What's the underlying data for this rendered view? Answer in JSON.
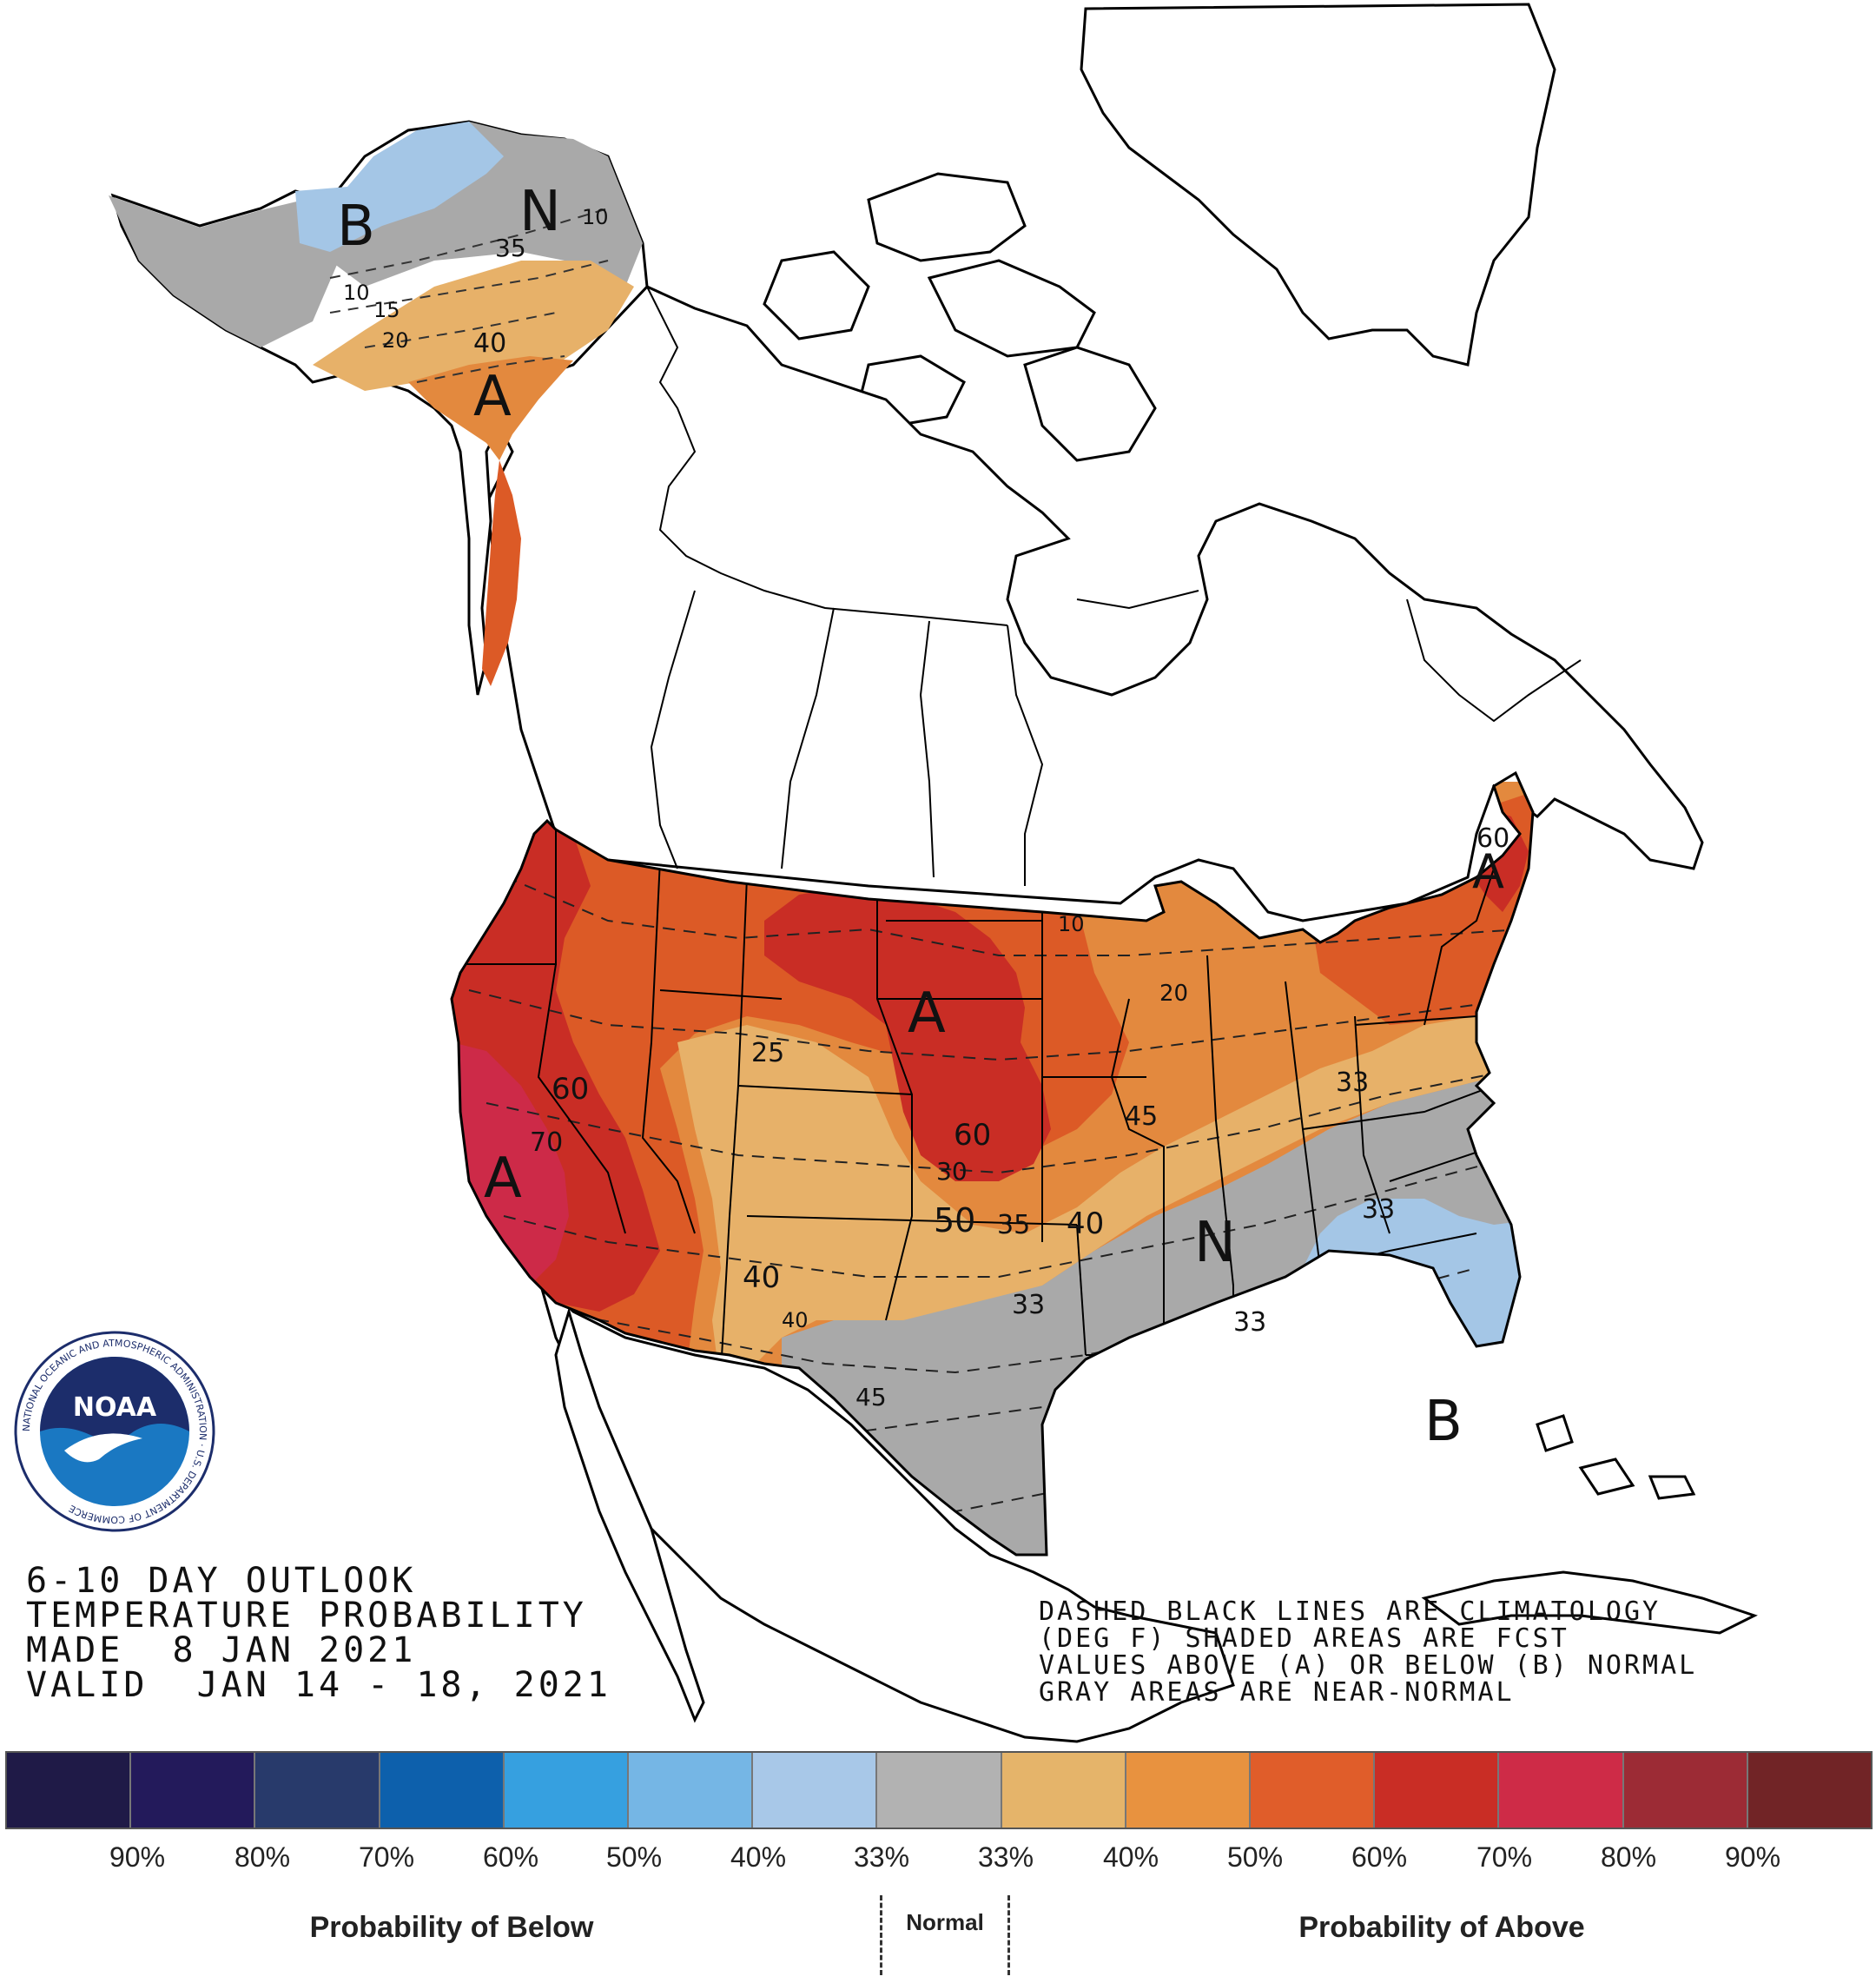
{
  "title": {
    "line1": "6-10 DAY OUTLOOK",
    "line2": "TEMPERATURE PROBABILITY",
    "line3": "MADE  8 JAN 2021",
    "line4": "VALID  JAN 14 - 18, 2021"
  },
  "note": {
    "line1": "DASHED BLACK LINES ARE CLIMATOLOGY",
    "line2": "(DEG F) SHADED AREAS ARE FCST",
    "line3": "VALUES ABOVE (A) OR BELOW (B) NORMAL",
    "line4": "GRAY AREAS ARE NEAR-NORMAL"
  },
  "logo": {
    "text": "NOAA",
    "ring_text": "NATIONAL OCEANIC AND ATMOSPHERIC ADMINISTRATION · U.S. DEPARTMENT OF COMMERCE"
  },
  "region_labels": {
    "alaska_b": "B",
    "alaska_n": "N",
    "alaska_a": "A",
    "west_a": "A",
    "plains_a": "A",
    "northeast_a": "A",
    "central_n": "N",
    "florida_b": "B"
  },
  "contour_labels": {
    "ak_35": "35",
    "ak_40": "40",
    "ak_10": "10",
    "ak_15": "15",
    "ak_20": "20",
    "c25": "25",
    "c60a": "60",
    "c70": "70",
    "c60b": "60",
    "c30": "30",
    "c50": "50",
    "c35": "35",
    "c40a": "40",
    "c40b": "40",
    "c40c": "40",
    "c33a": "33",
    "c45a": "45",
    "c45b": "45",
    "c33b": "33",
    "c33c": "33",
    "c33d": "33",
    "c60ne": "60",
    "c10": "10",
    "c20": "20"
  },
  "colors": {
    "near_normal": "#a9a9a9",
    "below_33": "#a4c6e6",
    "below_40": "#78b3e1",
    "below_50": "#3d9ad8",
    "above_33": "#e7b169",
    "above_40": "#e3893e",
    "above_50": "#dc5a26",
    "above_60": "#c92d25",
    "above_70": "#cd2a48"
  },
  "legend": {
    "colors": [
      "#1f1a47",
      "#231a5b",
      "#283a6b",
      "#0d60ac",
      "#36a0e0",
      "#75b6e5",
      "#a8c8e8",
      "#b2b2b2",
      "#e5b46a",
      "#e8923f",
      "#e05d2a",
      "#c92d25",
      "#ce2b47",
      "#9c2b35",
      "#712426"
    ],
    "below_labels": [
      "90%",
      "80%",
      "70%",
      "60%",
      "50%",
      "40%",
      "33%"
    ],
    "above_labels": [
      "33%",
      "40%",
      "50%",
      "60%",
      "70%",
      "80%",
      "90%"
    ],
    "below_caption": "Probability of Below",
    "normal_caption": "Normal",
    "above_caption": "Probability of Above"
  }
}
